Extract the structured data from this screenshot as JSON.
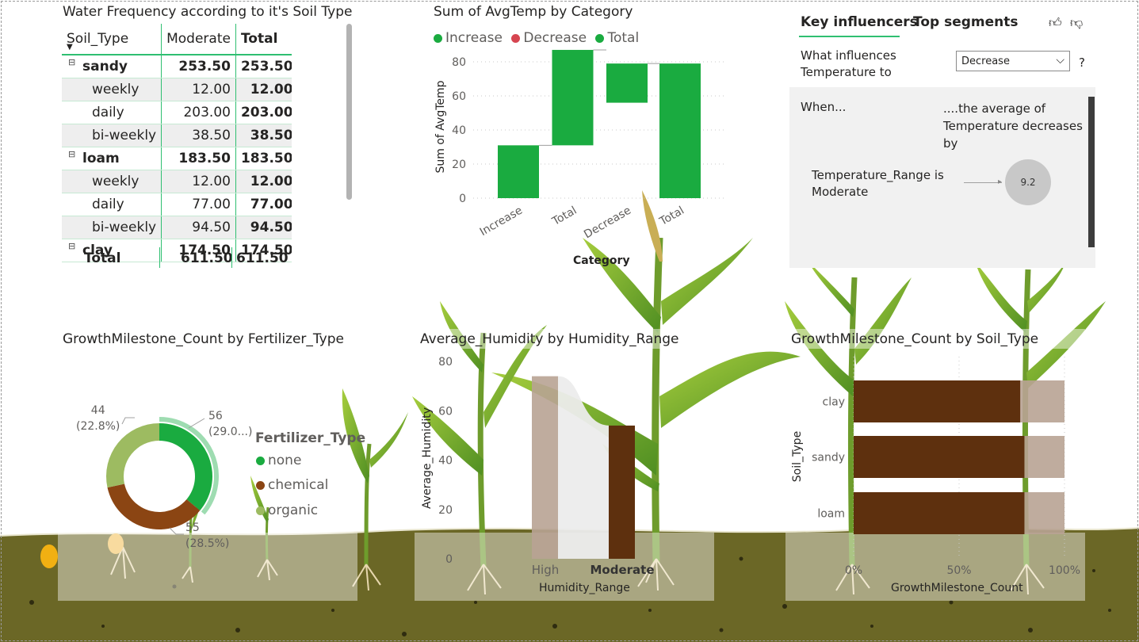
{
  "colors": {
    "green": "#1aab40",
    "brown": "#5e300e",
    "chem": "#8b4513",
    "organic": "#9dbb61",
    "red": "#d64550",
    "soil": "#6a6524"
  },
  "matrix": {
    "title": "Water Frequency according to it's Soil Type",
    "headers": [
      "Soil_Type",
      "Moderate",
      "Total"
    ],
    "rows": [
      {
        "label": "sandy",
        "moderate": "253.50",
        "total": "253.50",
        "group": true,
        "toggle": "⊟"
      },
      {
        "label": "weekly",
        "moderate": "12.00",
        "total": "12.00"
      },
      {
        "label": "daily",
        "moderate": "203.00",
        "total": "203.00"
      },
      {
        "label": "bi-weekly",
        "moderate": "38.50",
        "total": "38.50"
      },
      {
        "label": "loam",
        "moderate": "183.50",
        "total": "183.50",
        "group": true,
        "toggle": "⊟"
      },
      {
        "label": "weekly",
        "moderate": "12.00",
        "total": "12.00"
      },
      {
        "label": "daily",
        "moderate": "77.00",
        "total": "77.00"
      },
      {
        "label": "bi-weekly",
        "moderate": "94.50",
        "total": "94.50"
      },
      {
        "label": "clay",
        "moderate": "174.50",
        "total": "174.50",
        "group": true,
        "toggle": "⊟"
      }
    ],
    "total_row": {
      "label": "Total",
      "moderate": "611.50",
      "total": "611.50"
    }
  },
  "waterfall": {
    "title": "Sum of AvgTemp by Category",
    "legend": [
      "Increase",
      "Decrease",
      "Total"
    ],
    "xlabel": "Category",
    "ylabel": "Sum of AvgTemp",
    "chart_data": {
      "type": "bar",
      "categories": [
        "Increase",
        "Total",
        "Decrease",
        "Total"
      ],
      "values": [
        31,
        56,
        23,
        79
      ],
      "base": [
        0,
        31,
        56,
        0
      ],
      "ylim": [
        0,
        80
      ],
      "yticks": [
        "0",
        "20",
        "40",
        "60",
        "80"
      ]
    }
  },
  "key_influencers": {
    "tab1": "Key influencers",
    "tab2": "Top segments",
    "question_line1": "What influences",
    "question_line2": "Temperature to",
    "select_value": "Decrease",
    "help": "?",
    "when": "When...",
    "then_line1": "....the average of",
    "then_line2": "Temperature decreases",
    "then_line3": "by",
    "factor_line1": "Temperature_Range is",
    "factor_line2": "Moderate",
    "bubble_value": "9.2"
  },
  "donut": {
    "title": "GrowthMilestone_Count by Fertilizer_Type",
    "legend_title": "Fertilizer_Type",
    "legend": [
      "none",
      "chemical",
      "organic"
    ],
    "chart_data": {
      "type": "pie",
      "slices": [
        {
          "name": "none",
          "value": 56,
          "label1": "56",
          "label2": "(29.0...)"
        },
        {
          "name": "chemical",
          "value": 55,
          "label1": "55",
          "label2": "(28.5%)"
        },
        {
          "name": "organic",
          "value": 44,
          "label1": "44",
          "label2": "(22.8%)"
        }
      ]
    }
  },
  "humidity": {
    "title": "Average_Humidity by Humidity_Range",
    "xlabel": "Humidity_Range",
    "ylabel": "Average_Humidity",
    "chart_data": {
      "type": "bar",
      "categories": [
        "High",
        "Moderate"
      ],
      "values": [
        74,
        54
      ],
      "ylim": [
        0,
        80
      ],
      "yticks": [
        "0",
        "20",
        "40",
        "60",
        "80"
      ]
    }
  },
  "soil": {
    "title": "GrowthMilestone_Count by Soil_Type",
    "xlabel": "GrowthMilestone_Count",
    "ylabel": "Soil_Type",
    "chart_data": {
      "type": "bar",
      "orientation": "horizontal",
      "stacked_percent": true,
      "categories": [
        "clay",
        "sandy",
        "loam"
      ],
      "values": [
        79,
        81,
        81
      ],
      "xticks": [
        "0%",
        "50%",
        "100%"
      ]
    }
  }
}
